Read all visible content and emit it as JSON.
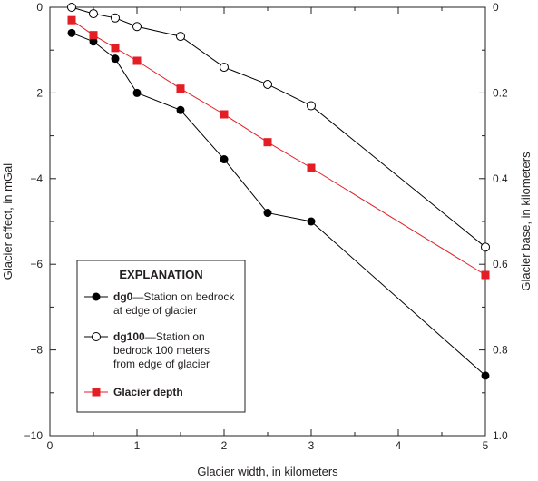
{
  "chart_data": {
    "type": "line",
    "xlabel": "Glacier width, in kilometers",
    "ylabel": "Glacier effect, in mGal",
    "y2label": "Glacier base, in kilometers",
    "xlim": [
      0,
      5
    ],
    "ylim": [
      -10,
      0
    ],
    "y2lim": [
      1.0,
      0
    ],
    "x_ticks": [
      "0",
      "1",
      "2",
      "3",
      "4",
      "5"
    ],
    "y_ticks": [
      "0",
      "−2",
      "−4",
      "−6",
      "−8",
      "−10"
    ],
    "y2_ticks": [
      "0",
      "0.2",
      "0.4",
      "0.6",
      "0.8",
      "1.0"
    ],
    "grid": false,
    "legend": {
      "title": "EXPLANATION",
      "placement": "bottom-left",
      "entries": [
        {
          "series": "dg0",
          "lines": [
            {
              "bold": "dg0",
              "rest": "—Station on bedrock"
            },
            {
              "bold": "",
              "rest": "at edge of glacier"
            }
          ]
        },
        {
          "series": "dg100",
          "lines": [
            {
              "bold": "dg100",
              "rest": "—Station on"
            },
            {
              "bold": "",
              "rest": "bedrock 100 meters"
            },
            {
              "bold": "",
              "rest": "from edge of glacier"
            }
          ]
        },
        {
          "series": "depth",
          "lines": [
            {
              "bold": "Glacier depth",
              "rest": ""
            }
          ]
        }
      ]
    },
    "series": [
      {
        "name": "dg0",
        "axis": "left",
        "color": "#000000",
        "marker": "filled-circle",
        "x": [
          0.25,
          0.5,
          0.75,
          1,
          1.5,
          2,
          2.5,
          3,
          5
        ],
        "y": [
          -0.6,
          -0.8,
          -1.2,
          -2.0,
          -2.4,
          -3.55,
          -4.8,
          -5.0,
          -8.6
        ]
      },
      {
        "name": "dg100",
        "axis": "left",
        "color": "#000000",
        "marker": "open-circle",
        "x": [
          0.25,
          0.5,
          0.75,
          1,
          1.5,
          2,
          2.5,
          3,
          5
        ],
        "y": [
          0,
          -0.15,
          -0.25,
          -0.45,
          -0.68,
          -1.4,
          -1.8,
          -2.3,
          -5.6
        ]
      },
      {
        "name": "Glacier depth",
        "axis": "right",
        "color": "#e31e24",
        "marker": "square",
        "x": [
          0.25,
          0.5,
          0.75,
          1,
          1.5,
          2,
          2.5,
          3,
          5
        ],
        "y": [
          0.03,
          0.065,
          0.095,
          0.125,
          0.19,
          0.25,
          0.315,
          0.375,
          0.625
        ]
      }
    ]
  }
}
